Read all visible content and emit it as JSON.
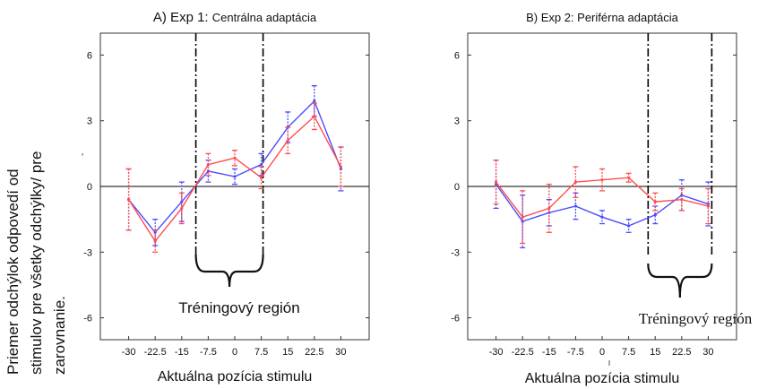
{
  "ylabel_lines": [
    "Priemer odchýlok odpovedí od",
    "stimulov pre všetky odchýlky/ pre",
    "zarovnanie."
  ],
  "chart_data": [
    {
      "type": "line",
      "title_prefix": "A) Exp 1: ",
      "title_main": "Centrálna adaptácia",
      "xlabel": "Aktuálna pozícia stimulu",
      "categories": [
        "-30",
        "-22.5",
        "-15",
        "-7.5",
        "0",
        "7.5",
        "15",
        "22.5",
        "30"
      ],
      "x": [
        -30,
        -22.5,
        -15,
        -7.5,
        0,
        7.5,
        15,
        22.5,
        30
      ],
      "xlim": [
        -38,
        38
      ],
      "ylim": [
        -7,
        7
      ],
      "yticks": [
        "-6",
        "-3",
        "0",
        "3",
        "6"
      ],
      "series": [
        {
          "color": "#4d4dff",
          "values": [
            -0.6,
            -2.1,
            -0.7,
            0.7,
            0.45,
            1.0,
            2.7,
            3.9,
            0.8
          ],
          "err": [
            1.4,
            0.6,
            0.9,
            0.5,
            0.35,
            0.5,
            0.7,
            0.7,
            1.0
          ]
        },
        {
          "color": "#ff4d4d",
          "values": [
            -0.6,
            -2.5,
            -1.0,
            1.0,
            1.3,
            0.4,
            2.1,
            3.2,
            0.9
          ],
          "err": [
            1.4,
            0.5,
            0.7,
            0.5,
            0.35,
            0.5,
            0.6,
            0.6,
            0.9
          ]
        }
      ],
      "dashed_lines_x": [
        -11,
        8
      ],
      "annotation": "Tréningový región",
      "brace_x": [
        -11,
        8
      ]
    },
    {
      "type": "line",
      "title_prefix": "B) Exp 2: ",
      "title_main": "Periférna adaptácia",
      "xlabel": "Aktuálna pozícia stimulu",
      "categories": [
        "-30",
        "-22.5",
        "-15",
        "-7.5",
        "0",
        "7.5",
        "15",
        "22.5",
        "30"
      ],
      "x": [
        -30,
        -22.5,
        -15,
        -7.5,
        0,
        7.5,
        15,
        22.5,
        30
      ],
      "xlim": [
        -38,
        38
      ],
      "ylim": [
        -7,
        7
      ],
      "yticks": [
        "-6",
        "-3",
        "0",
        "3",
        "6"
      ],
      "series": [
        {
          "color": "#4d4dff",
          "values": [
            0.1,
            -1.6,
            -1.2,
            -0.9,
            -1.4,
            -1.8,
            -1.3,
            -0.4,
            -0.8
          ],
          "err": [
            1.1,
            1.2,
            0.6,
            0.6,
            0.3,
            0.3,
            0.4,
            0.7,
            1.0
          ]
        },
        {
          "color": "#ff4d4d",
          "values": [
            0.2,
            -1.4,
            -1.0,
            0.2,
            0.3,
            0.4,
            -0.7,
            -0.6,
            -0.9
          ],
          "err": [
            1.0,
            1.2,
            1.1,
            0.7,
            0.5,
            0.2,
            0.4,
            0.5,
            0.8
          ]
        }
      ],
      "dashed_lines_x": [
        13,
        31
      ],
      "annotation": "Tréningový región",
      "brace_x": [
        13,
        31
      ]
    }
  ]
}
